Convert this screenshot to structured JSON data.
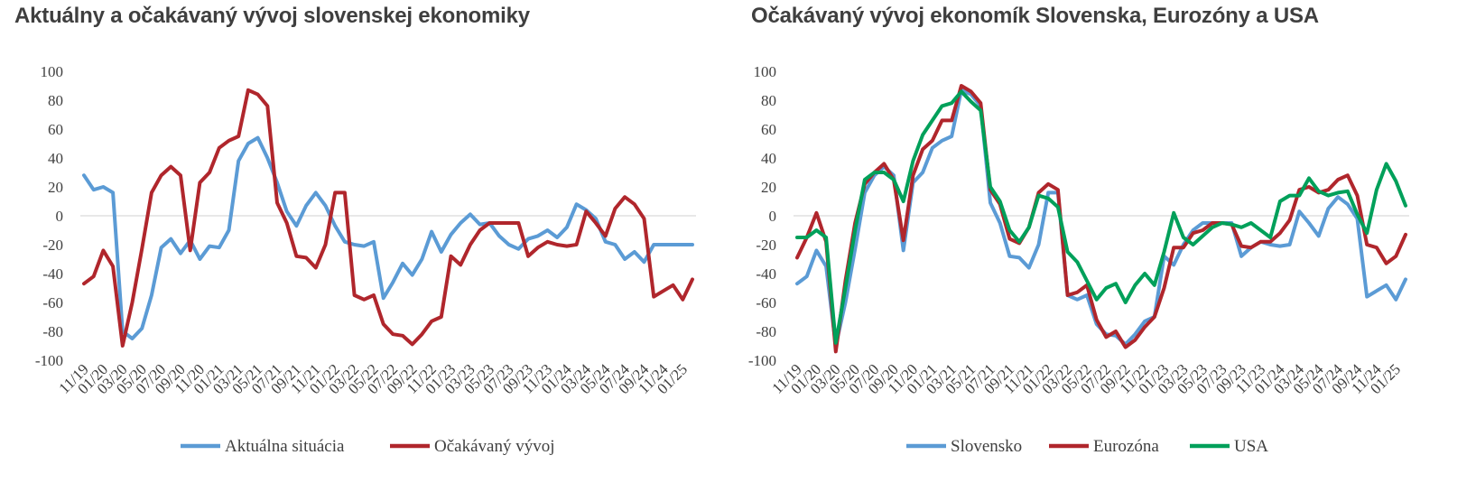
{
  "chart_data": [
    {
      "type": "line",
      "title": "Aktuálny a očakávaný vývoj slovenskej ekonomiky",
      "ylim": [
        -100,
        100
      ],
      "yticks": [
        100,
        80,
        60,
        40,
        20,
        0,
        -20,
        -40,
        -60,
        -80,
        -100
      ],
      "grid": "zero-line only",
      "legend_position": "bottom",
      "x": [
        "11/19",
        "12/19",
        "01/20",
        "02/20",
        "03/20",
        "04/20",
        "05/20",
        "06/20",
        "07/20",
        "08/20",
        "09/20",
        "10/20",
        "11/20",
        "12/20",
        "01/21",
        "02/21",
        "03/21",
        "04/21",
        "05/21",
        "06/21",
        "07/21",
        "08/21",
        "09/21",
        "10/21",
        "11/21",
        "12/21",
        "01/22",
        "02/22",
        "03/22",
        "04/22",
        "05/22",
        "06/22",
        "07/22",
        "08/22",
        "09/22",
        "10/22",
        "11/22",
        "12/22",
        "01/23",
        "02/23",
        "03/23",
        "04/23",
        "05/23",
        "06/23",
        "07/23",
        "08/23",
        "09/23",
        "10/23",
        "11/23",
        "12/23",
        "01/24",
        "02/24",
        "03/24",
        "04/24",
        "05/24",
        "06/24",
        "07/24",
        "08/24",
        "09/24",
        "10/24",
        "11/24",
        "12/24",
        "01/25",
        "02/25"
      ],
      "xtick_labels": [
        "11/19",
        "01/20",
        "03/20",
        "05/20",
        "07/20",
        "09/20",
        "11/20",
        "01/21",
        "03/21",
        "05/21",
        "07/21",
        "09/21",
        "11/21",
        "01/22",
        "03/22",
        "05/22",
        "07/22",
        "09/22",
        "11/22",
        "01/23",
        "03/23",
        "05/23",
        "07/23",
        "09/23",
        "11/23",
        "01/24",
        "03/24",
        "05/24",
        "07/24",
        "09/24",
        "11/24",
        "01/25"
      ],
      "series": [
        {
          "name": "Aktuálna situácia",
          "color": "#5b9bd5",
          "values": [
            28,
            18,
            20,
            16,
            -80,
            -85,
            -78,
            -55,
            -22,
            -16,
            -26,
            -17,
            -30,
            -21,
            -22,
            -10,
            38,
            50,
            54,
            40,
            23,
            3,
            -7,
            7,
            16,
            7,
            -7,
            -18,
            -20,
            -21,
            -18,
            -57,
            -46,
            -33,
            -41,
            -30,
            -11,
            -25,
            -13,
            -5,
            1,
            -6,
            -5,
            -14,
            -20,
            -23,
            -16,
            -14,
            -10,
            -15,
            -8,
            8,
            4,
            -2,
            -18,
            -20,
            -30,
            -25,
            -32,
            -20,
            -20,
            -20,
            -20,
            -20
          ]
        },
        {
          "name": "Očakávaný vývoj",
          "color": "#b0262c",
          "values": [
            -47,
            -42,
            -24,
            -35,
            -90,
            -60,
            -23,
            16,
            28,
            34,
            28,
            -24,
            23,
            30,
            47,
            52,
            55,
            87,
            84,
            76,
            9,
            -5,
            -28,
            -29,
            -36,
            -20,
            16,
            16,
            -55,
            -58,
            -55,
            -75,
            -82,
            -83,
            -89,
            -82,
            -73,
            -70,
            -28,
            -34,
            -20,
            -10,
            -5,
            -5,
            -5,
            -5,
            -28,
            -22,
            -18,
            -20,
            -21,
            -20,
            3,
            -5,
            -14,
            5,
            13,
            8,
            -2,
            -56,
            -52,
            -48,
            -58,
            -44
          ]
        }
      ]
    },
    {
      "type": "line",
      "title": "Očakávaný vývoj ekonomík Slovenska, Eurozóny a USA",
      "ylim": [
        -100,
        100
      ],
      "yticks": [
        100,
        80,
        60,
        40,
        20,
        0,
        -20,
        -40,
        -60,
        -80,
        -100
      ],
      "grid": "zero-line only",
      "legend_position": "bottom",
      "x": [
        "11/19",
        "12/19",
        "01/20",
        "02/20",
        "03/20",
        "04/20",
        "05/20",
        "06/20",
        "07/20",
        "08/20",
        "09/20",
        "10/20",
        "11/20",
        "12/20",
        "01/21",
        "02/21",
        "03/21",
        "04/21",
        "05/21",
        "06/21",
        "07/21",
        "08/21",
        "09/21",
        "10/21",
        "11/21",
        "12/21",
        "01/22",
        "02/22",
        "03/22",
        "04/22",
        "05/22",
        "06/22",
        "07/22",
        "08/22",
        "09/22",
        "10/22",
        "11/22",
        "12/22",
        "01/23",
        "02/23",
        "03/23",
        "04/23",
        "05/23",
        "06/23",
        "07/23",
        "08/23",
        "09/23",
        "10/23",
        "11/23",
        "12/23",
        "01/24",
        "02/24",
        "03/24",
        "04/24",
        "05/24",
        "06/24",
        "07/24",
        "08/24",
        "09/24",
        "10/24",
        "11/24",
        "12/24",
        "01/25",
        "02/25"
      ],
      "xtick_labels": [
        "11/19",
        "01/20",
        "03/20",
        "05/20",
        "07/20",
        "09/20",
        "11/20",
        "01/21",
        "03/21",
        "05/21",
        "07/21",
        "09/21",
        "11/21",
        "01/22",
        "03/22",
        "05/22",
        "07/22",
        "09/22",
        "11/22",
        "01/23",
        "03/23",
        "05/23",
        "07/23",
        "09/23",
        "11/23",
        "01/24",
        "03/24",
        "05/24",
        "07/24",
        "09/24",
        "11/24",
        "01/25"
      ],
      "series": [
        {
          "name": "Slovensko",
          "color": "#5b9bd5",
          "values": [
            -47,
            -42,
            -24,
            -35,
            -90,
            -60,
            -23,
            16,
            28,
            34,
            28,
            -24,
            23,
            30,
            47,
            52,
            55,
            87,
            84,
            76,
            9,
            -5,
            -28,
            -29,
            -36,
            -20,
            16,
            16,
            -55,
            -58,
            -55,
            -75,
            -82,
            -83,
            -89,
            -82,
            -73,
            -70,
            -28,
            -34,
            -20,
            -10,
            -5,
            -5,
            -5,
            -5,
            -28,
            -22,
            -18,
            -20,
            -21,
            -20,
            3,
            -5,
            -14,
            5,
            13,
            8,
            -2,
            -56,
            -52,
            -48,
            -58,
            -44
          ]
        },
        {
          "name": "Eurozóna",
          "color": "#b0262c",
          "values": [
            -29,
            -15,
            2,
            -18,
            -94,
            -45,
            -5,
            22,
            30,
            36,
            25,
            -17,
            28,
            46,
            52,
            66,
            66,
            90,
            86,
            78,
            18,
            8,
            -16,
            -19,
            -8,
            16,
            22,
            18,
            -55,
            -53,
            -48,
            -72,
            -84,
            -80,
            -91,
            -86,
            -77,
            -70,
            -50,
            -22,
            -22,
            -12,
            -10,
            -5,
            -5,
            -6,
            -21,
            -22,
            -18,
            -18,
            -12,
            -3,
            18,
            20,
            16,
            18,
            25,
            28,
            14,
            -20,
            -22,
            -33,
            -28,
            -13
          ]
        },
        {
          "name": "USA",
          "color": "#00a05a",
          "values": [
            -15,
            -15,
            -10,
            -15,
            -88,
            -50,
            -10,
            25,
            30,
            30,
            25,
            10,
            38,
            56,
            66,
            76,
            78,
            86,
            79,
            73,
            20,
            10,
            -10,
            -18,
            -8,
            14,
            12,
            6,
            -25,
            -32,
            -45,
            -58,
            -50,
            -47,
            -60,
            -48,
            -40,
            -48,
            -25,
            2,
            -15,
            -20,
            -14,
            -8,
            -5,
            -6,
            -8,
            -5,
            -10,
            -15,
            10,
            14,
            14,
            26,
            17,
            14,
            16,
            17,
            1,
            -12,
            18,
            36,
            24,
            7
          ]
        }
      ]
    }
  ]
}
